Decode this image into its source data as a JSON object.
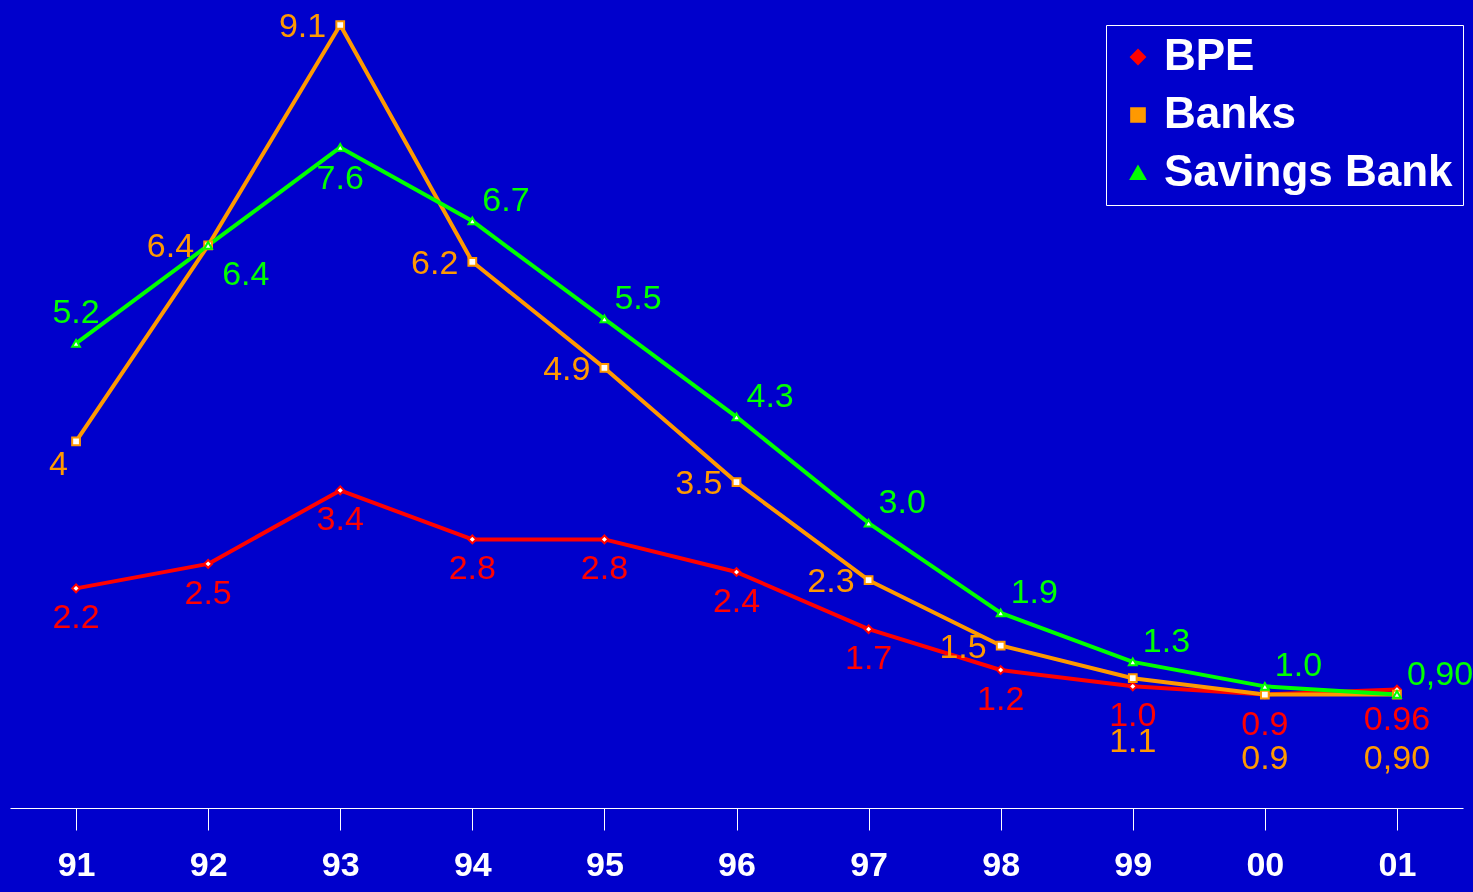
{
  "chart_data": {
    "type": "line",
    "categories": [
      "91",
      "92",
      "93",
      "94",
      "95",
      "96",
      "97",
      "98",
      "99",
      "00",
      "01"
    ],
    "series": [
      {
        "name": "BPE",
        "color": "#ff0000",
        "marker": "diamond",
        "values": [
          2.2,
          2.5,
          3.4,
          2.8,
          2.8,
          2.4,
          1.7,
          1.2,
          1.0,
          0.9,
          0.96
        ],
        "value_labels": [
          "2.2",
          "2.5",
          "3.4",
          "2.8",
          "2.8",
          "2.4",
          "1.7",
          "1.2",
          "1.0",
          "0.9",
          "0.96"
        ]
      },
      {
        "name": "Banks",
        "color": "#ff9900",
        "marker": "square",
        "values": [
          4,
          6.4,
          9.1,
          6.2,
          4.9,
          3.5,
          2.3,
          1.5,
          1.1,
          0.9,
          0.9
        ],
        "value_labels": [
          "4",
          "6.4",
          "9.1",
          "6.2",
          "4.9",
          "3.5",
          "2.3",
          "1.5",
          "1.1",
          "0.9",
          "0,90"
        ]
      },
      {
        "name": "Savings Bank",
        "color": "#00ff00",
        "marker": "triangle",
        "values": [
          5.2,
          6.4,
          7.6,
          6.7,
          5.5,
          4.3,
          3.0,
          1.9,
          1.3,
          1.0,
          0.9
        ],
        "value_labels": [
          "5.2",
          "6.4",
          "7.6",
          "6.7",
          "5.5",
          "4.3",
          "3.0",
          "1.9",
          "1.3",
          "1.0",
          "0,90"
        ]
      }
    ],
    "legend": "top right",
    "grid": false
  }
}
